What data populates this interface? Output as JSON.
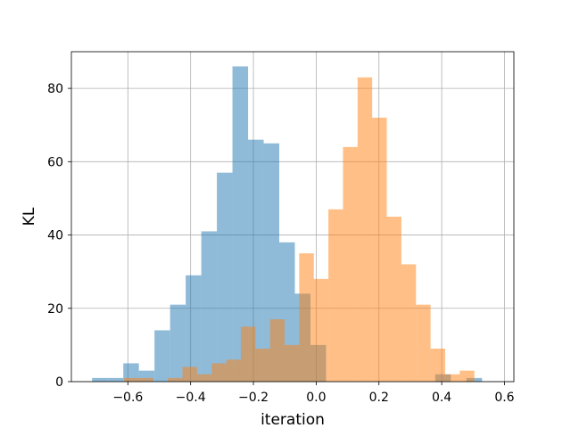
{
  "chart_data": {
    "type": "bar",
    "histogram": true,
    "xlabel": "iteration",
    "ylabel": "KL",
    "xlim": [
      -0.78,
      0.63
    ],
    "ylim": [
      0,
      90
    ],
    "xticks": [
      -0.6,
      -0.4,
      -0.2,
      0.0,
      0.2,
      0.4,
      0.6
    ],
    "xtick_labels": [
      "−0.6",
      "−0.4",
      "−0.2",
      "0.0",
      "0.2",
      "0.4",
      "0.6"
    ],
    "yticks": [
      0,
      20,
      40,
      60,
      80
    ],
    "ytick_labels": [
      "0",
      "20",
      "40",
      "60",
      "80"
    ],
    "grid": true,
    "series": [
      {
        "color": "#1f77b4",
        "alpha": 0.5,
        "bin_start": -0.714,
        "bin_width": 0.0497,
        "counts": [
          1,
          1,
          5,
          3,
          14,
          21,
          29,
          41,
          57,
          86,
          66,
          65,
          38,
          24,
          10,
          0,
          0,
          0,
          0,
          0,
          0,
          0,
          2,
          0,
          1
        ]
      },
      {
        "color": "#ff7f0e",
        "alpha": 0.5,
        "bin_start": -0.612,
        "bin_width": 0.0465,
        "counts": [
          1,
          1,
          0,
          1,
          4,
          2,
          5,
          6,
          15,
          9,
          17,
          10,
          35,
          28,
          47,
          64,
          83,
          72,
          45,
          32,
          21,
          9,
          2,
          3
        ]
      }
    ]
  }
}
